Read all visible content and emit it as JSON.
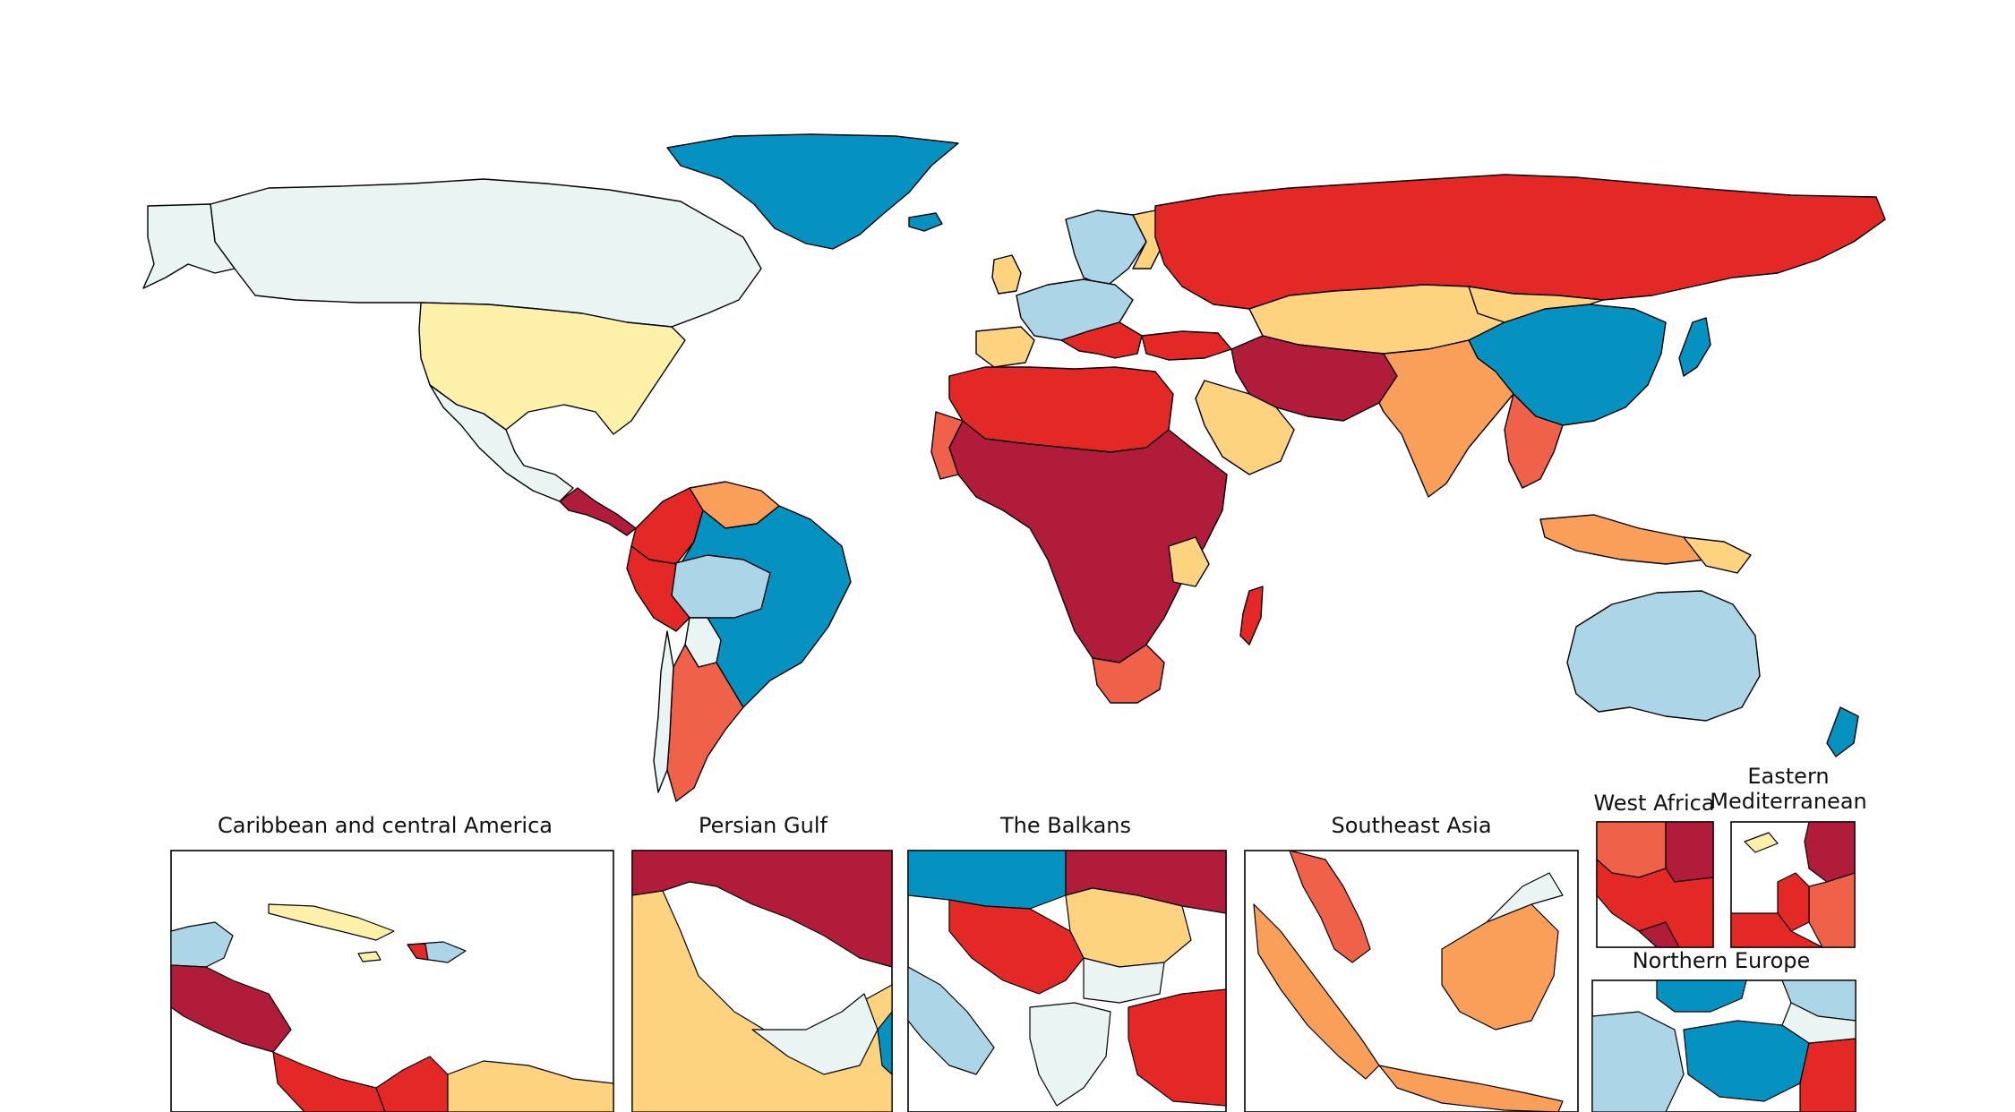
{
  "palette": {
    "c1": "#b01c3a",
    "c2": "#e32826",
    "c3": "#ef6149",
    "c4": "#fa9f5a",
    "c5": "#fdd37f",
    "c6": "#fdf1a9",
    "c7": "#eaf5f3",
    "c8": "#acd5e8",
    "c9": "#0592c0"
  },
  "insets": [
    {
      "key": "caribbean",
      "title": "Caribbean and central America"
    },
    {
      "key": "gulf",
      "title": "Persian Gulf"
    },
    {
      "key": "balkans",
      "title": "The Balkans"
    },
    {
      "key": "seasia",
      "title": "Southeast Asia"
    },
    {
      "key": "westafrica",
      "title": "West Africa"
    },
    {
      "key": "eastmed",
      "title_line1": "Eastern",
      "title_line2": "Mediterranean"
    },
    {
      "key": "neurope",
      "title": "Northern Europe"
    }
  ]
}
